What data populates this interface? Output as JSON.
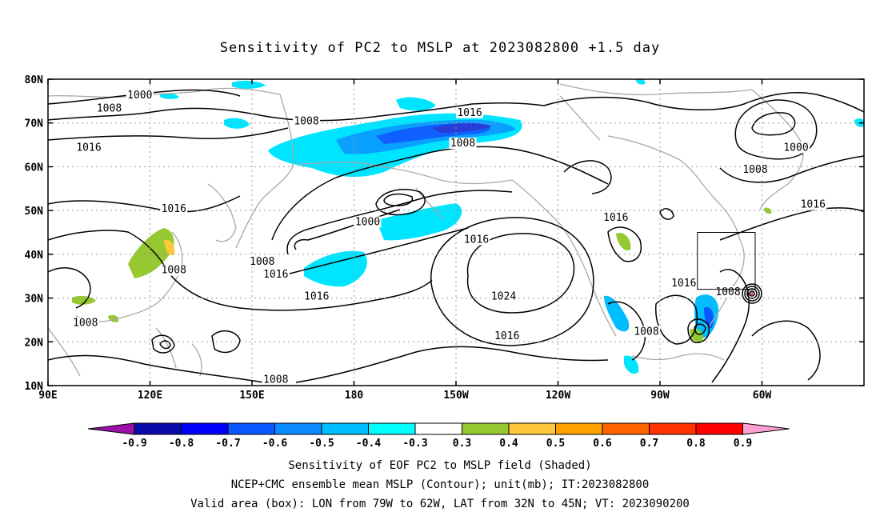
{
  "title": "Sensitivity of PC2 to MSLP at 2023082800 +1.5 day",
  "chart_data": {
    "type": "contour map",
    "title": "Sensitivity of PC2 to MSLP at 2023082800 +1.5 day",
    "lon_ticks": [
      "90E",
      "120E",
      "150E",
      "180",
      "150W",
      "120W",
      "90W",
      "60W"
    ],
    "lat_ticks": [
      "80N",
      "70N",
      "60N",
      "50N",
      "40N",
      "30N",
      "20N",
      "10N"
    ],
    "lon_range": [
      90,
      330
    ],
    "lat_range": [
      10,
      80
    ],
    "grid": "dotted",
    "colorbar": {
      "labels": [
        "-0.9",
        "-0.8",
        "-0.7",
        "-0.6",
        "-0.5",
        "-0.4",
        "-0.3",
        "0.3",
        "0.4",
        "0.5",
        "0.6",
        "0.7",
        "0.8",
        "0.9"
      ],
      "colors": [
        "#9c0fa8",
        "#0a0aa8",
        "#0000ff",
        "#0a58ff",
        "#0a8cff",
        "#00bdff",
        "#00ffff",
        "#ffffff",
        "#96c832",
        "#ffc83c",
        "#ffa000",
        "#ff6400",
        "#ff3200",
        "#ff0000",
        "#ffa0d2"
      ]
    },
    "contour_labels": [
      {
        "text": "1000",
        "lon": 117,
        "lat": 76
      },
      {
        "text": "1008",
        "lon": 108,
        "lat": 73
      },
      {
        "text": "1008",
        "lon": 166,
        "lat": 70
      },
      {
        "text": "1016",
        "lon": 214,
        "lat": 72
      },
      {
        "text": "1008",
        "lon": 212,
        "lat": 65
      },
      {
        "text": "1016",
        "lon": 102,
        "lat": 64
      },
      {
        "text": "1000",
        "lon": 310,
        "lat": 64
      },
      {
        "text": "1008",
        "lon": 298,
        "lat": 59
      },
      {
        "text": "1016",
        "lon": 257,
        "lat": 48
      },
      {
        "text": "1000",
        "lon": 184,
        "lat": 47
      },
      {
        "text": "1016",
        "lon": 127,
        "lat": 50
      },
      {
        "text": "1016",
        "lon": 315,
        "lat": 51
      },
      {
        "text": "1016",
        "lon": 216,
        "lat": 43
      },
      {
        "text": "1008",
        "lon": 153,
        "lat": 38
      },
      {
        "text": "1008",
        "lon": 127,
        "lat": 36
      },
      {
        "text": "1016",
        "lon": 157,
        "lat": 35
      },
      {
        "text": "1016",
        "lon": 277,
        "lat": 33
      },
      {
        "text": "1016",
        "lon": 169,
        "lat": 30
      },
      {
        "text": "1024",
        "lon": 224,
        "lat": 30
      },
      {
        "text": "1008",
        "lon": 290,
        "lat": 31
      },
      {
        "text": "1008",
        "lon": 101,
        "lat": 24
      },
      {
        "text": "1008",
        "lon": 266,
        "lat": 22
      },
      {
        "text": "1016",
        "lon": 225,
        "lat": 21
      },
      {
        "text": "1008",
        "lon": 157,
        "lat": 11
      }
    ],
    "valid_area_box": {
      "lon": [
        281,
        298
      ],
      "lat": [
        32,
        45
      ]
    }
  },
  "captions": [
    "Sensitivity of EOF PC2 to MSLP field (Shaded)",
    "NCEP+CMC ensemble mean MSLP (Contour); unit(mb); IT:2023082800",
    "Valid area (box): LON from 79W to 62W, LAT from 32N to 45N; VT: 2023090200"
  ]
}
